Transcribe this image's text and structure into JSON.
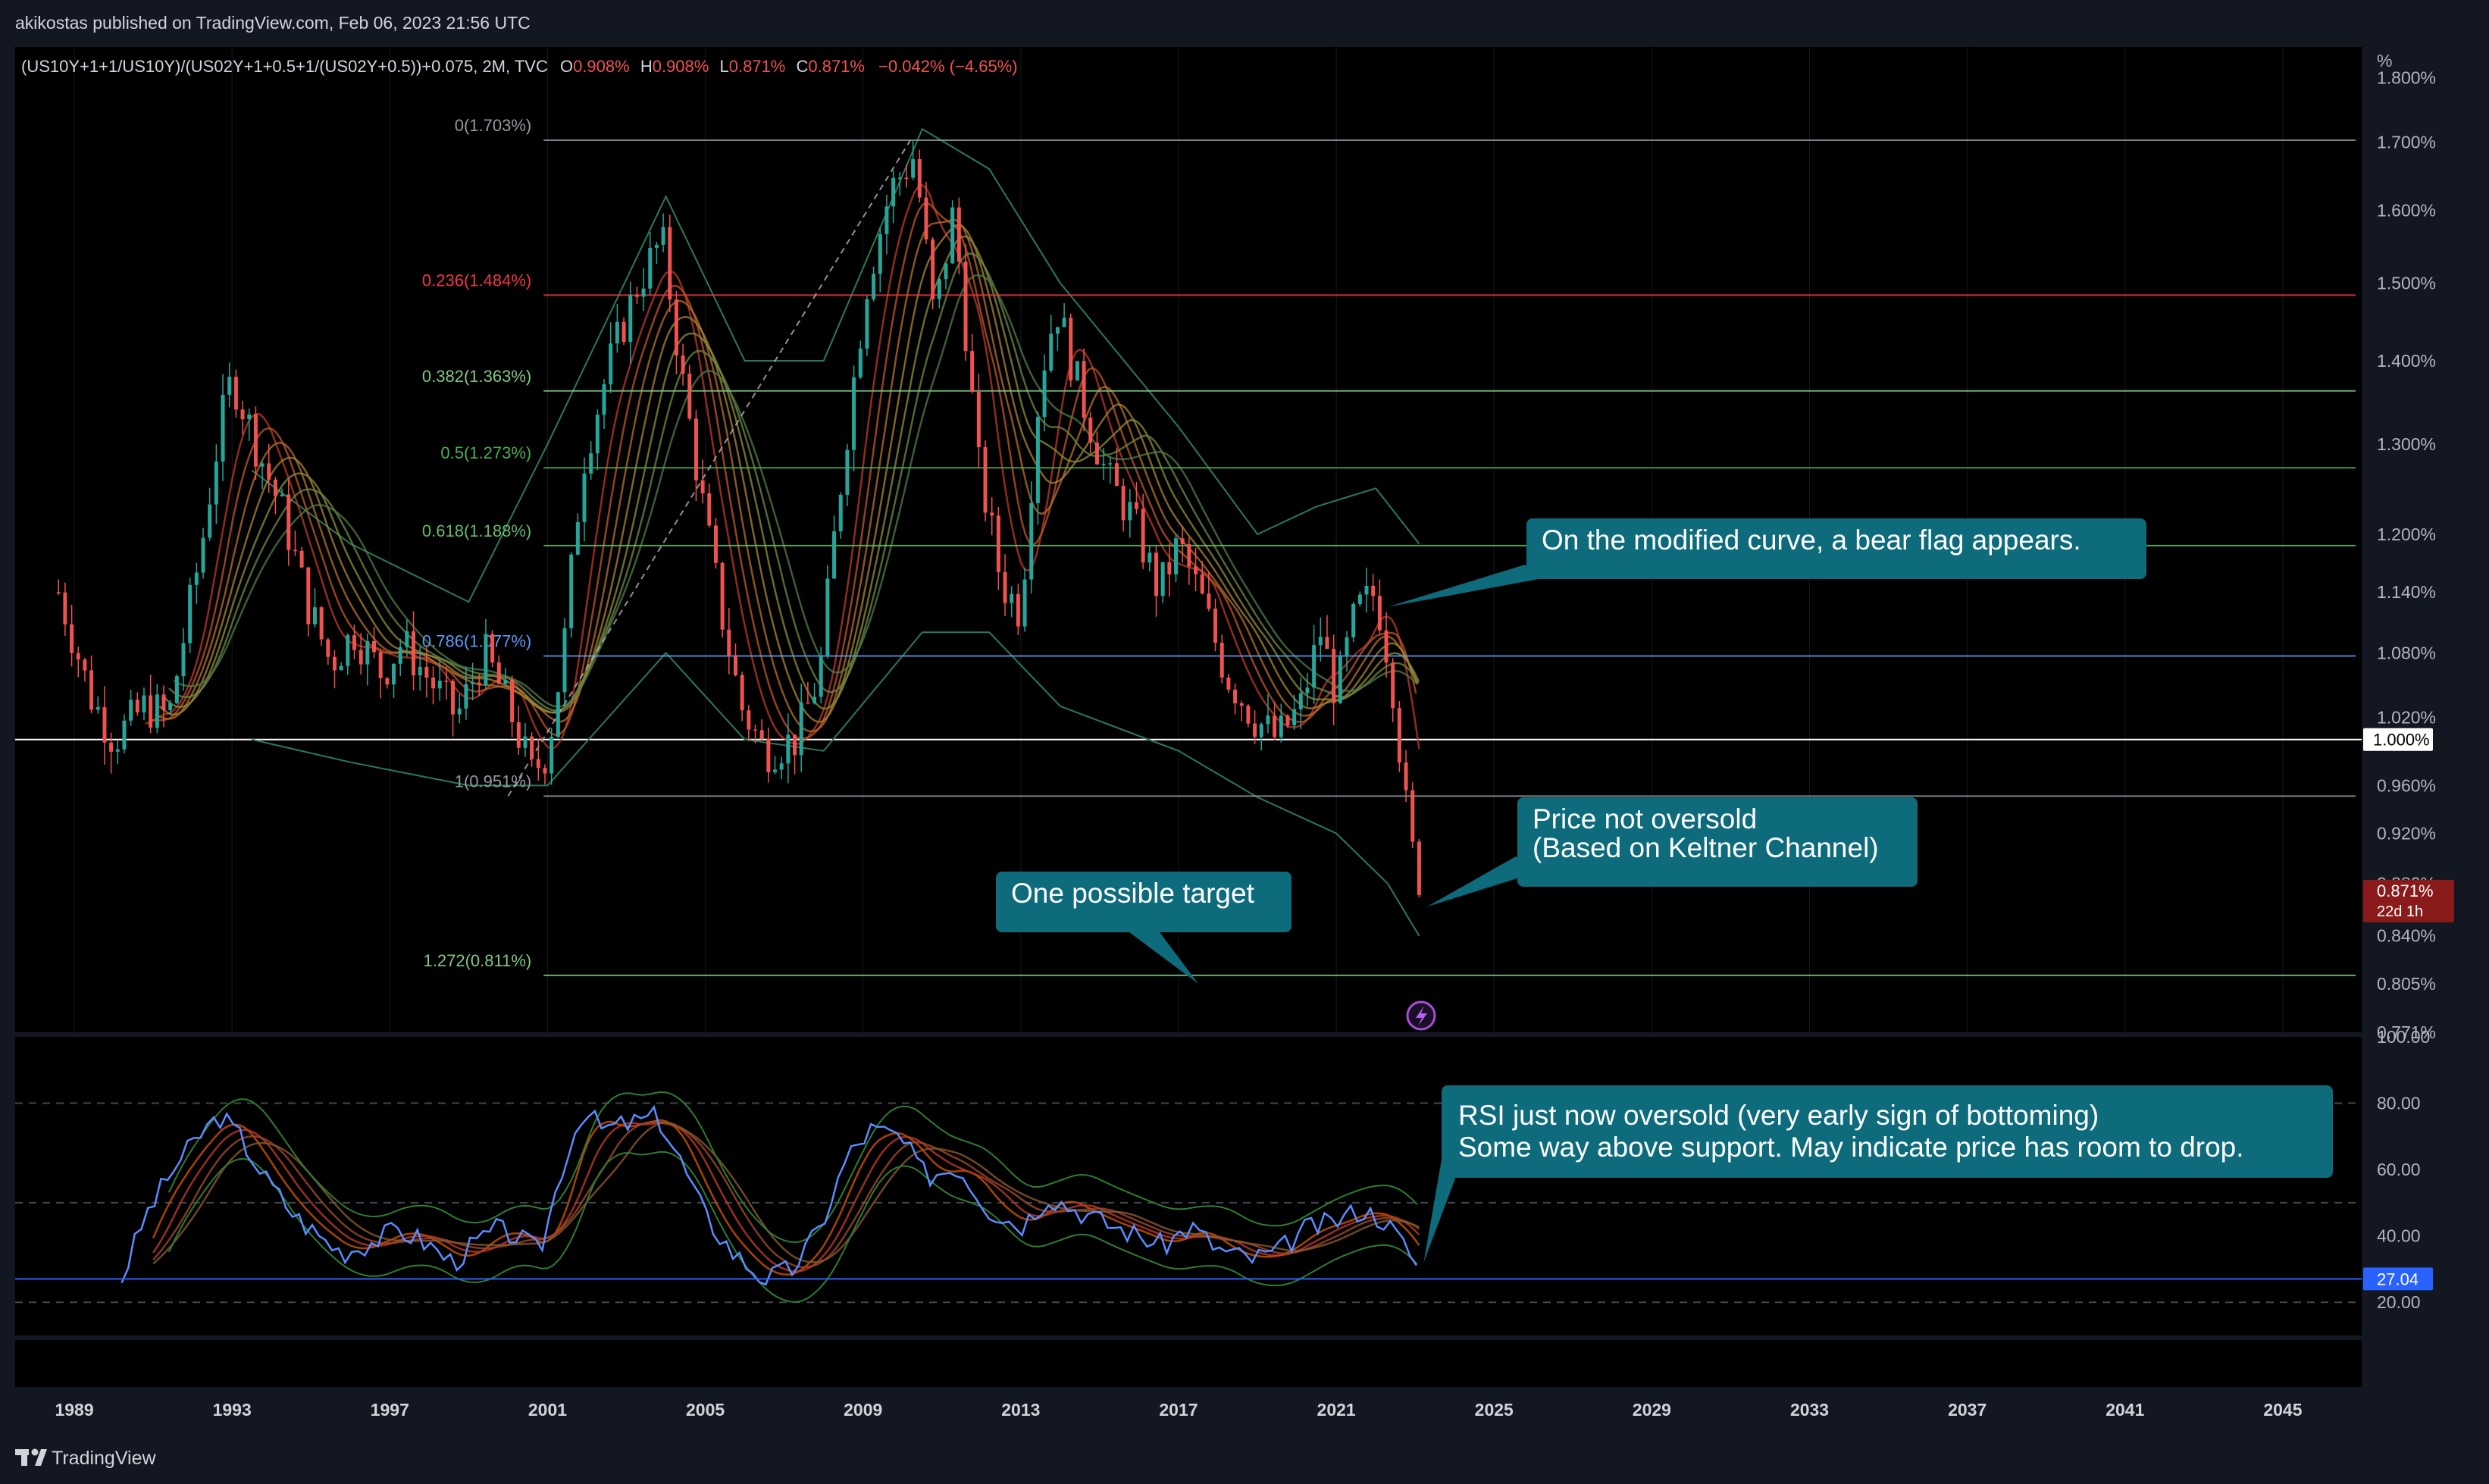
{
  "header": {
    "published": "akikostas published on TradingView.com, Feb 06, 2023 21:56 UTC",
    "symbol": "(US10Y+1+1/US10Y)/(US02Y+1+0.5+1/(US02Y+0.5))+0.075, 2M, TVC",
    "ohlc": {
      "o_label": "O",
      "o": "0.908%",
      "h_label": "H",
      "h": "0.908%",
      "l_label": "L",
      "l": "0.871%",
      "c_label": "C",
      "c": "0.871%",
      "change": "−0.042% (−4.65%)"
    }
  },
  "footer": {
    "brand": "TradingView"
  },
  "colors": {
    "bg": "#131722",
    "pane": "#000000",
    "up": "#26a69a",
    "down": "#ef5350",
    "note": "#0d6b7c",
    "rsi": "#5b8cff",
    "fib_red": "#f23645",
    "fib_green": "#81c784",
    "fib_blue": "#5b9cf6",
    "fib_grey": "#9598a1"
  },
  "chart_data": [
    {
      "type": "candlestick",
      "title": "(US10Y+1+1/US10Y)/(US02Y+1+0.5+1/(US02Y+0.5))+0.075, 2M, TVC",
      "y_unit": "%",
      "y_scale": "log",
      "ylim": [
        0.771,
        1.85
      ],
      "xlim": [
        1987.5,
        2047
      ],
      "y_ticks": [
        "%",
        "1.800%",
        "1.700%",
        "1.600%",
        "1.500%",
        "1.400%",
        "1.300%",
        "1.200%",
        "1.140%",
        "1.080%",
        "1.020%",
        "0.960%",
        "0.920%",
        "0.880%",
        "0.840%",
        "0.805%",
        "0.771%"
      ],
      "y_tick_values": [
        1.8,
        1.7,
        1.6,
        1.5,
        1.4,
        1.3,
        1.2,
        1.14,
        1.08,
        1.02,
        0.96,
        0.92,
        0.88,
        0.84,
        0.805,
        0.771
      ],
      "x_ticks": [
        "1989",
        "1993",
        "1997",
        "2001",
        "2005",
        "2009",
        "2013",
        "2017",
        "2021",
        "2025",
        "2029",
        "2033",
        "2037",
        "2041",
        "2045"
      ],
      "x_tick_values": [
        1989,
        1993,
        1997,
        2001,
        2005,
        2009,
        2013,
        2017,
        2021,
        2025,
        2029,
        2033,
        2037,
        2041,
        2045
      ],
      "price_path": [
        [
          1988.6,
          1.14
        ],
        [
          1989.4,
          1.04
        ],
        [
          1990.0,
          1.0
        ],
        [
          1990.8,
          1.03
        ],
        [
          1991.4,
          1.02
        ],
        [
          1992.2,
          1.18
        ],
        [
          1992.7,
          1.32
        ],
        [
          1993.0,
          1.38
        ],
        [
          1993.6,
          1.3
        ],
        [
          1994.3,
          1.22
        ],
        [
          1994.9,
          1.13
        ],
        [
          1995.5,
          1.07
        ],
        [
          1996.1,
          1.1
        ],
        [
          1996.8,
          1.06
        ],
        [
          1997.3,
          1.09
        ],
        [
          1998.1,
          1.05
        ],
        [
          1998.7,
          1.02
        ],
        [
          1999.4,
          1.08
        ],
        [
          2000.0,
          1.03
        ],
        [
          2000.6,
          0.97
        ],
        [
          2001.0,
          0.99
        ],
        [
          2001.4,
          1.08
        ],
        [
          2001.9,
          1.28
        ],
        [
          2002.6,
          1.4
        ],
        [
          2003.3,
          1.5
        ],
        [
          2003.9,
          1.56
        ],
        [
          2004.4,
          1.38
        ],
        [
          2004.9,
          1.24
        ],
        [
          2005.4,
          1.12
        ],
        [
          2005.9,
          1.03
        ],
        [
          2006.5,
          0.99
        ],
        [
          2007.3,
          1.0
        ],
        [
          2007.9,
          1.06
        ],
        [
          2008.5,
          1.28
        ],
        [
          2009.1,
          1.5
        ],
        [
          2009.7,
          1.63
        ],
        [
          2010.3,
          1.68
        ],
        [
          2010.8,
          1.45
        ],
        [
          2011.3,
          1.6
        ],
        [
          2011.9,
          1.28
        ],
        [
          2012.5,
          1.15
        ],
        [
          2013.0,
          1.12
        ],
        [
          2013.5,
          1.38
        ],
        [
          2013.9,
          1.47
        ],
        [
          2014.5,
          1.36
        ],
        [
          2015.2,
          1.26
        ],
        [
          2015.8,
          1.22
        ],
        [
          2016.5,
          1.14
        ],
        [
          2017.0,
          1.19
        ],
        [
          2017.6,
          1.13
        ],
        [
          2018.2,
          1.06
        ],
        [
          2018.9,
          1.02
        ],
        [
          2019.5,
          1.0
        ],
        [
          2020.1,
          1.03
        ],
        [
          2020.6,
          1.1
        ],
        [
          2021.0,
          1.04
        ],
        [
          2021.5,
          1.12
        ],
        [
          2022.0,
          1.14
        ],
        [
          2022.4,
          1.06
        ],
        [
          2022.8,
          0.93
        ],
        [
          2023.1,
          0.871
        ]
      ],
      "last_price": "0.871%",
      "last_price_value": 0.871,
      "countdown": "22d 1h",
      "reference_line": {
        "value": 1.0,
        "label": "1.000%"
      },
      "keltner": {
        "upper": [
          [
            1993.5,
            1.27
          ],
          [
            1996,
            1.19
          ],
          [
            1999,
            1.13
          ],
          [
            2001,
            1.3
          ],
          [
            2004,
            1.62
          ],
          [
            2006,
            1.4
          ],
          [
            2008,
            1.4
          ],
          [
            2010.5,
            1.72
          ],
          [
            2012.2,
            1.66
          ],
          [
            2014,
            1.5
          ],
          [
            2017,
            1.32
          ],
          [
            2019,
            1.2
          ],
          [
            2020.5,
            1.23
          ],
          [
            2022,
            1.25
          ],
          [
            2023.1,
            1.19
          ]
        ],
        "lower": [
          [
            1993.5,
            1.0
          ],
          [
            1996,
            0.98
          ],
          [
            1999,
            0.96
          ],
          [
            2001,
            0.96
          ],
          [
            2004,
            1.08
          ],
          [
            2006,
            1.0
          ],
          [
            2008,
            0.99
          ],
          [
            2010.5,
            1.1
          ],
          [
            2012.2,
            1.1
          ],
          [
            2014,
            1.03
          ],
          [
            2017,
            0.99
          ],
          [
            2019,
            0.95
          ],
          [
            2021,
            0.92
          ],
          [
            2022.3,
            0.88
          ],
          [
            2023.1,
            0.84
          ]
        ]
      },
      "fibonacci": [
        {
          "label": "0(1.703%)",
          "value": 1.703,
          "color": "#9598a1"
        },
        {
          "label": "0.236(1.484%)",
          "value": 1.484,
          "color": "#f23645"
        },
        {
          "label": "0.382(1.363%)",
          "value": 1.363,
          "color": "#81c784"
        },
        {
          "label": "0.5(1.273%)",
          "value": 1.273,
          "color": "#4caf50"
        },
        {
          "label": "0.618(1.188%)",
          "value": 1.188,
          "color": "#66bb6a"
        },
        {
          "label": "0.786(1.077%)",
          "value": 1.077,
          "color": "#5b9cf6"
        },
        {
          "label": "1(0.951%)",
          "value": 0.951,
          "color": "#9598a1"
        },
        {
          "label": "1.272(0.811%)",
          "value": 0.811,
          "color": "#81c784"
        }
      ],
      "fib_start": 2000.9,
      "fib_anchor_path": [
        [
          2000.0,
          0.951
        ],
        [
          2010.2,
          1.703
        ]
      ],
      "annotations": [
        {
          "text": "On the modified curve, a bear flag appears.",
          "target": [
            2022.3,
            1.125
          ]
        },
        {
          "text": "Price not oversold",
          "text2": "(Based on Keltner Channel)",
          "target": [
            2023.3,
            0.862
          ]
        },
        {
          "text": "One possible target",
          "target": [
            2017.5,
            0.805
          ]
        }
      ]
    },
    {
      "type": "line",
      "title": "",
      "ylim": [
        10,
        100
      ],
      "y_ticks": [
        "100.00",
        "80.00",
        "60.00",
        "40.00",
        "20.00"
      ],
      "y_tick_values": [
        100,
        80,
        60,
        40,
        20
      ],
      "series": [
        {
          "values": [
            [
              1990.2,
              27.04
            ],
            [
              1990.8,
              46
            ],
            [
              1991.5,
              60
            ],
            [
              1992.3,
              72
            ],
            [
              1992.7,
              76
            ],
            [
              1993.2,
              70
            ],
            [
              1993.8,
              58
            ],
            [
              1994.6,
              46
            ],
            [
              1995.2,
              40
            ],
            [
              1995.8,
              35
            ],
            [
              1996.5,
              38
            ],
            [
              1997.2,
              42
            ],
            [
              1997.9,
              38
            ],
            [
              1998.6,
              32
            ],
            [
              1999.2,
              38
            ],
            [
              1999.7,
              42
            ],
            [
              2000.2,
              40
            ],
            [
              2000.8,
              35
            ],
            [
              2001.4,
              62
            ],
            [
              2001.9,
              78
            ],
            [
              2002.4,
              72
            ],
            [
              2003.1,
              74
            ],
            [
              2003.8,
              76
            ],
            [
              2004.4,
              62
            ],
            [
              2005.0,
              46
            ],
            [
              2005.7,
              35
            ],
            [
              2006.5,
              27
            ],
            [
              2007.2,
              30
            ],
            [
              2007.9,
              42
            ],
            [
              2008.6,
              64
            ],
            [
              2009.2,
              72
            ],
            [
              2009.9,
              70
            ],
            [
              2010.6,
              58
            ],
            [
              2011.4,
              61
            ],
            [
              2012.2,
              48
            ],
            [
              2013.0,
              43
            ],
            [
              2013.7,
              52
            ],
            [
              2014.4,
              48
            ],
            [
              2015.1,
              44
            ],
            [
              2015.8,
              41
            ],
            [
              2016.6,
              37
            ],
            [
              2017.3,
              43
            ],
            [
              2018.0,
              36
            ],
            [
              2018.8,
              33
            ],
            [
              2019.5,
              35
            ],
            [
              2020.2,
              42
            ],
            [
              2020.9,
              44
            ],
            [
              2021.6,
              48
            ],
            [
              2022.2,
              45
            ],
            [
              2022.8,
              36
            ],
            [
              2023.1,
              30
            ]
          ]
        }
      ],
      "support_line": {
        "value": 27.04,
        "label": "27.04"
      },
      "annotations": [
        {
          "text": "RSI just now oversold (very early sign of bottoming)",
          "text2": "Some way above support. May indicate price has room to drop.",
          "target": [
            2023.1,
            32
          ]
        }
      ]
    }
  ]
}
